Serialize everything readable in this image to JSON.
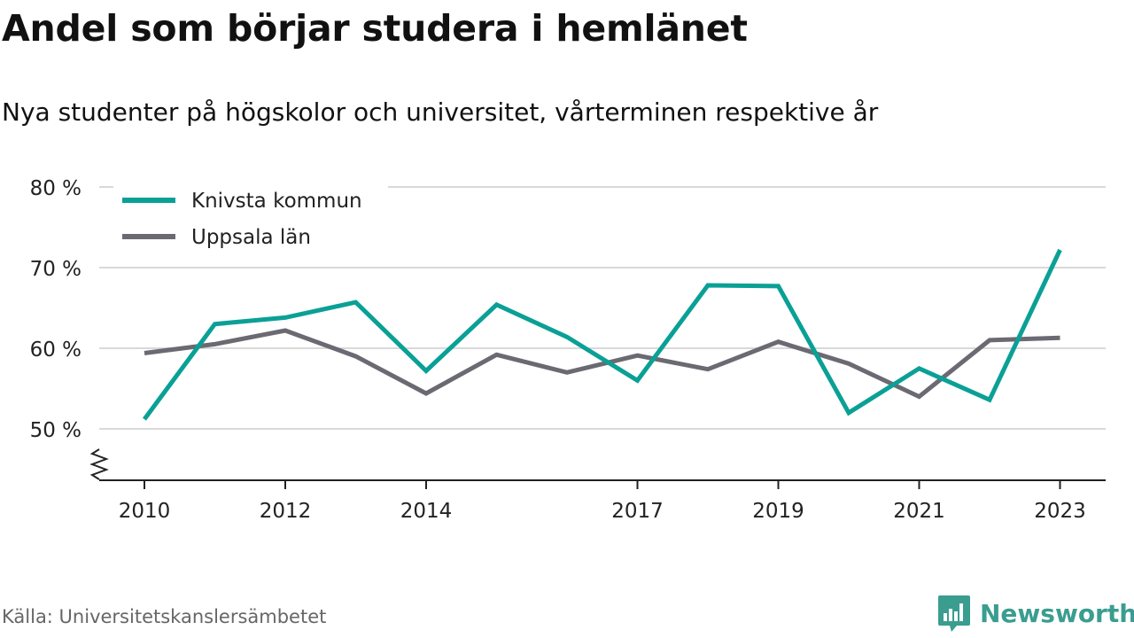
{
  "header": {
    "title": "Andel som börjar studera i hemlänet",
    "subtitle": "Nya studenter på högskolor och universitet, vårterminen respektive år"
  },
  "footer": {
    "source": "Källa: Universitetskanslersämbetet",
    "brand": "Newsworthy",
    "brand_icon": "bar-chart-icon",
    "brand_color": "#3a9d8f"
  },
  "chart_data": {
    "type": "line",
    "x": [
      2010,
      2011,
      2012,
      2013,
      2014,
      2015,
      2016,
      2017,
      2018,
      2019,
      2020,
      2021,
      2022,
      2023
    ],
    "x_tick_labels": [
      "2010",
      "2012",
      "2014",
      "2017",
      "2019",
      "2021",
      "2023"
    ],
    "y_ticks": [
      50,
      60,
      70,
      80
    ],
    "y_tick_labels": [
      "50 %",
      "60 %",
      "70 %",
      "80 %"
    ],
    "ylim": [
      44,
      80
    ],
    "y_axis_break": true,
    "grid": true,
    "legend_position": "top-left",
    "series": [
      {
        "name": "Knivsta kommun",
        "color": "#0aa096",
        "values": [
          51.2,
          63.0,
          63.8,
          65.7,
          57.2,
          65.4,
          61.4,
          56.0,
          67.8,
          67.7,
          52.0,
          57.5,
          53.6,
          72.2
        ]
      },
      {
        "name": "Uppsala län",
        "color": "#6b6a72",
        "values": [
          59.4,
          60.5,
          62.2,
          59.0,
          54.4,
          59.2,
          57.0,
          59.1,
          57.4,
          60.8,
          58.1,
          54.0,
          61.0,
          61.3
        ]
      }
    ]
  }
}
